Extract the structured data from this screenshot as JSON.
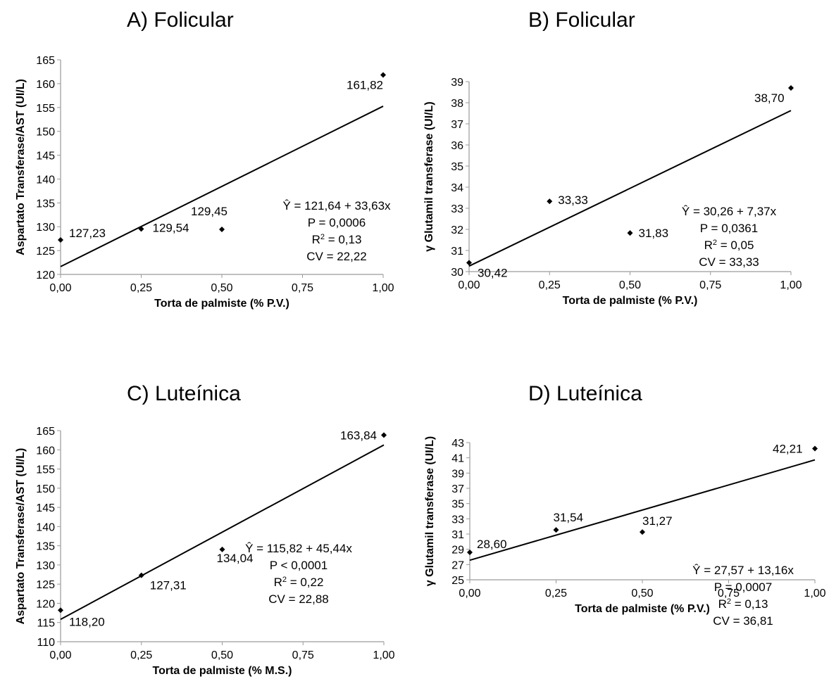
{
  "chart_data": [
    {
      "type": "scatter",
      "title": "A) Folicular",
      "xlabel": "Torta de palmiste (%  P.V.)",
      "ylabel": "Aspartato Transferase/AST (UI/L)",
      "xlim": [
        0,
        1
      ],
      "ylim": [
        120,
        165
      ],
      "x_ticks": [
        "0,00",
        "0,25",
        "0,50",
        "0,75",
        "1,00"
      ],
      "y_ticks": [
        "120",
        "125",
        "130",
        "135",
        "140",
        "145",
        "150",
        "155",
        "160",
        "165"
      ],
      "points": [
        {
          "x": 0,
          "y": 127.23,
          "label": "127,23"
        },
        {
          "x": 0.25,
          "y": 129.54,
          "label": "129,54"
        },
        {
          "x": 0.5,
          "y": 129.45,
          "label": "129,45"
        },
        {
          "x": 1,
          "y": 161.82,
          "label": "161,82"
        }
      ],
      "trendline": {
        "intercept": 121.64,
        "slope": 33.63
      },
      "equation": [
        "Ŷ = 121,64 + 33,63x",
        "P = 0,0006",
        "R2 = 0,13",
        "CV = 22,22"
      ],
      "grid": false
    },
    {
      "type": "scatter",
      "title": "B) Folicular",
      "xlabel": "Torta de palmiste (%  P.V.)",
      "ylabel": "γ Glutamil transferase (UI/L)",
      "xlim": [
        0,
        1
      ],
      "ylim": [
        30,
        39
      ],
      "x_ticks": [
        "0,00",
        "0,25",
        "0,50",
        "0,75",
        "1,00"
      ],
      "y_ticks": [
        "30",
        "31",
        "32",
        "33",
        "34",
        "35",
        "36",
        "37",
        "38",
        "39"
      ],
      "points": [
        {
          "x": 0,
          "y": 30.42,
          "label": "30,42"
        },
        {
          "x": 0.25,
          "y": 33.33,
          "label": "33,33"
        },
        {
          "x": 0.5,
          "y": 31.83,
          "label": "31,83"
        },
        {
          "x": 1,
          "y": 38.7,
          "label": "38,70"
        }
      ],
      "trendline": {
        "intercept": 30.26,
        "slope": 7.37
      },
      "equation": [
        "Ŷ = 30,26 + 7,37x",
        "P = 0,0361",
        "R2 = 0,05",
        "CV = 33,33"
      ],
      "grid": false
    },
    {
      "type": "scatter",
      "title": "C) Luteínica",
      "xlabel": "Torta de palmiste (%  M.S.)",
      "ylabel": "Aspartato Transferase/AST (UI/L)",
      "xlim": [
        0,
        1
      ],
      "ylim": [
        110,
        165
      ],
      "x_ticks": [
        "0,00",
        "0,25",
        "0,50",
        "0,75",
        "1,00"
      ],
      "y_ticks": [
        "110",
        "115",
        "120",
        "125",
        "130",
        "135",
        "140",
        "145",
        "150",
        "155",
        "160",
        "165"
      ],
      "points": [
        {
          "x": 0,
          "y": 118.2,
          "label": "118,20"
        },
        {
          "x": 0.25,
          "y": 127.31,
          "label": "127,31"
        },
        {
          "x": 0.5,
          "y": 134.04,
          "label": "134,04"
        },
        {
          "x": 1,
          "y": 163.84,
          "label": "163,84"
        }
      ],
      "trendline": {
        "intercept": 115.82,
        "slope": 45.44
      },
      "equation": [
        "Ŷ = 115,82 + 45,44x",
        "P < 0,0001",
        "R2 = 0,22",
        "CV = 22,88"
      ],
      "grid": false
    },
    {
      "type": "scatter",
      "title": "D) Luteínica",
      "xlabel": "Torta de palmiste (%  P.V.)",
      "ylabel": "γ Glutamil transferase (UI/L)",
      "xlim": [
        0,
        1
      ],
      "ylim": [
        25,
        43
      ],
      "x_ticks": [
        "0,00",
        "0,25",
        "0,50",
        "0,75",
        "1,00"
      ],
      "y_ticks": [
        "25",
        "27",
        "29",
        "31",
        "33",
        "35",
        "37",
        "39",
        "41",
        "43"
      ],
      "points": [
        {
          "x": 0,
          "y": 28.6,
          "label": "28,60"
        },
        {
          "x": 0.25,
          "y": 31.54,
          "label": "31,54"
        },
        {
          "x": 0.5,
          "y": 31.27,
          "label": "31,27"
        },
        {
          "x": 1,
          "y": 42.21,
          "label": "42,21"
        }
      ],
      "trendline": {
        "intercept": 27.57,
        "slope": 13.16
      },
      "equation": [
        "Ŷ = 27,57 + 13,16x",
        "P = 0,0007",
        "R2 = 0,13",
        "CV = 36,81"
      ],
      "grid": false
    }
  ]
}
